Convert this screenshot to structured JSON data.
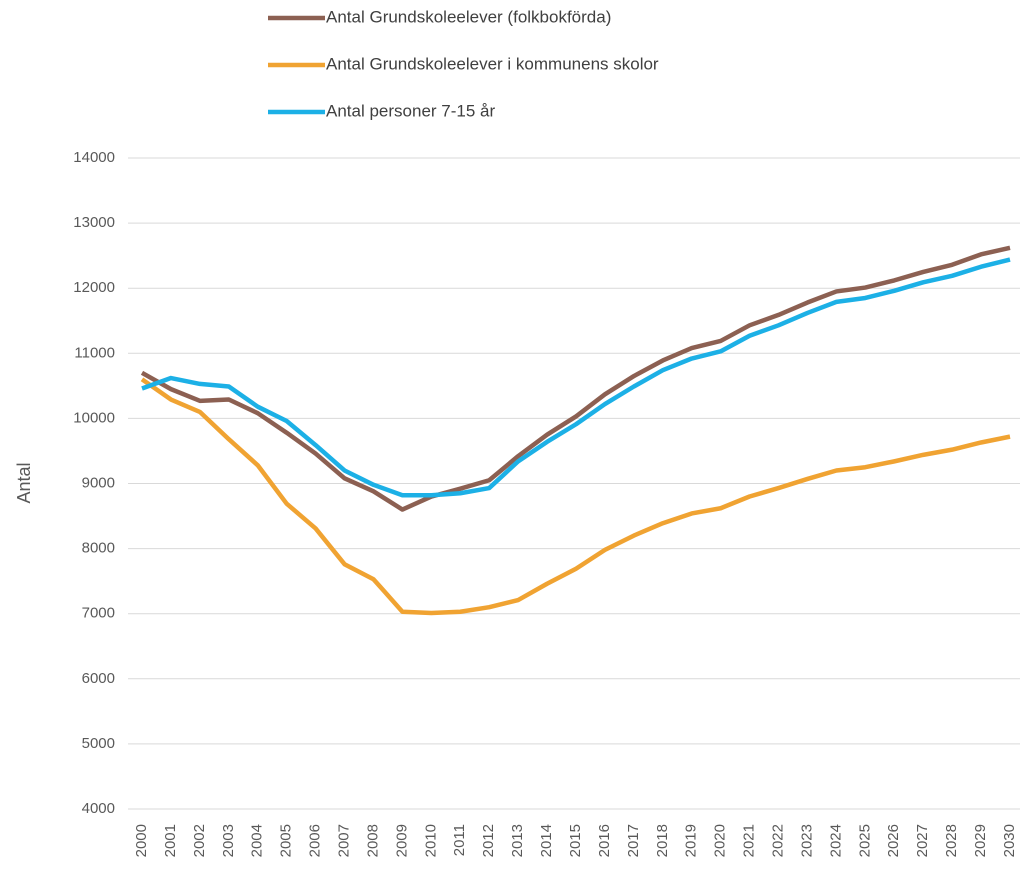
{
  "chart_data": {
    "type": "line",
    "y_label": "Antal",
    "x": [
      2000,
      2001,
      2002,
      2003,
      2004,
      2005,
      2006,
      2007,
      2008,
      2009,
      2010,
      2011,
      2012,
      2013,
      2014,
      2015,
      2016,
      2017,
      2018,
      2019,
      2020,
      2021,
      2022,
      2023,
      2024,
      2025,
      2026,
      2027,
      2028,
      2029,
      2030
    ],
    "series": [
      {
        "name": "Antal Grundskoleelever (folkbokförda)",
        "color": "#8c6052",
        "values": [
          10700,
          10450,
          10270,
          10290,
          10080,
          9780,
          9460,
          9080,
          8880,
          8600,
          8800,
          8920,
          9050,
          9420,
          9750,
          10030,
          10370,
          10650,
          10890,
          11080,
          11190,
          11430,
          11590,
          11780,
          11950,
          12010,
          12120,
          12250,
          12360,
          12520,
          12620
        ]
      },
      {
        "name": "Antal Grundskoleelever i kommunens skolor",
        "color": "#f0a332",
        "values": [
          10600,
          10290,
          10100,
          9680,
          9280,
          8690,
          8310,
          7760,
          7530,
          7030,
          7010,
          7030,
          7100,
          7210,
          7460,
          7690,
          7980,
          8200,
          8390,
          8540,
          8620,
          8800,
          8930,
          9070,
          9200,
          9250,
          9340,
          9440,
          9520,
          9630,
          9720
        ]
      },
      {
        "name": "Antal personer 7-15 år",
        "color": "#1cb0e6",
        "values": [
          10460,
          10620,
          10530,
          10490,
          10180,
          9960,
          9590,
          9200,
          8980,
          8820,
          8820,
          8850,
          8930,
          9340,
          9640,
          9910,
          10220,
          10490,
          10740,
          10920,
          11030,
          11270,
          11430,
          11620,
          11790,
          11850,
          11960,
          12090,
          12190,
          12330,
          12440
        ]
      }
    ],
    "ylim": [
      4000,
      14000
    ],
    "yticks": [
      4000,
      5000,
      6000,
      7000,
      8000,
      9000,
      10000,
      11000,
      12000,
      13000,
      14000
    ],
    "grid": true,
    "legend": "top"
  }
}
